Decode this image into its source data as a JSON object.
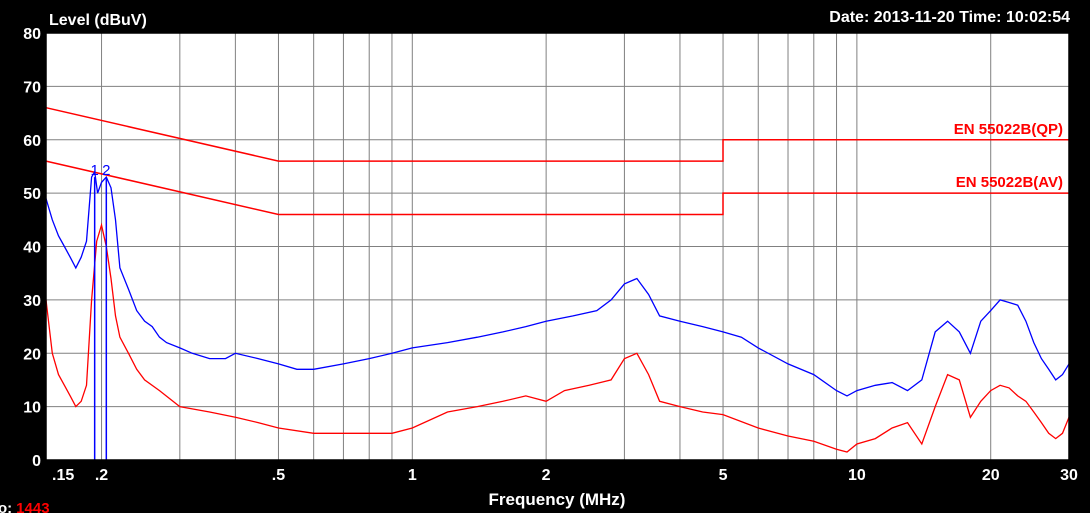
{
  "chart_data": {
    "type": "line",
    "title": "",
    "ylabel": "Level (dBuV)",
    "xlabel": "Frequency (MHz)",
    "timestamp": "Date: 2013-11-20  Time: 10:02:54",
    "footer": {
      "prefix": "o:",
      "value": "1443"
    },
    "x_scale": "log",
    "xlim": [
      0.15,
      30
    ],
    "ylim": [
      0,
      80
    ],
    "grid": true,
    "y_ticks": [
      "0",
      "10",
      "20",
      "30",
      "40",
      "50",
      "60",
      "70",
      "80"
    ],
    "x_ticks": [
      {
        "value": 0.15,
        "label": ".15"
      },
      {
        "value": 0.2,
        "label": ".2"
      },
      {
        "value": 0.5,
        "label": ".5"
      },
      {
        "value": 1,
        "label": "1"
      },
      {
        "value": 2,
        "label": "2"
      },
      {
        "value": 5,
        "label": "5"
      },
      {
        "value": 10,
        "label": "10"
      },
      {
        "value": 20,
        "label": "20"
      },
      {
        "value": 30,
        "label": "30"
      }
    ],
    "limit_lines": [
      {
        "name": "EN 55022B(QP)",
        "color": "#ff0000",
        "points": [
          [
            0.15,
            66
          ],
          [
            0.5,
            56
          ],
          [
            5,
            56
          ],
          [
            5,
            60
          ],
          [
            30,
            60
          ]
        ]
      },
      {
        "name": "EN 55022B(AV)",
        "color": "#ff0000",
        "points": [
          [
            0.15,
            56
          ],
          [
            0.5,
            46
          ],
          [
            5,
            46
          ],
          [
            5,
            50
          ],
          [
            30,
            50
          ]
        ]
      }
    ],
    "markers": [
      {
        "label": "1",
        "x": 0.193
      },
      {
        "label": "2",
        "x": 0.205
      }
    ],
    "series": [
      {
        "color": "#0000ff",
        "points": [
          [
            0.15,
            49
          ],
          [
            0.155,
            45
          ],
          [
            0.16,
            42
          ],
          [
            0.165,
            40
          ],
          [
            0.17,
            38
          ],
          [
            0.175,
            36
          ],
          [
            0.18,
            38
          ],
          [
            0.185,
            41
          ],
          [
            0.19,
            53
          ],
          [
            0.193,
            54
          ],
          [
            0.196,
            50
          ],
          [
            0.2,
            52
          ],
          [
            0.205,
            53
          ],
          [
            0.21,
            51
          ],
          [
            0.215,
            45
          ],
          [
            0.22,
            36
          ],
          [
            0.23,
            32
          ],
          [
            0.24,
            28
          ],
          [
            0.25,
            26
          ],
          [
            0.26,
            25
          ],
          [
            0.27,
            23
          ],
          [
            0.28,
            22
          ],
          [
            0.3,
            21
          ],
          [
            0.32,
            20
          ],
          [
            0.35,
            19
          ],
          [
            0.38,
            19
          ],
          [
            0.4,
            20
          ],
          [
            0.45,
            19
          ],
          [
            0.5,
            18
          ],
          [
            0.55,
            17
          ],
          [
            0.6,
            17
          ],
          [
            0.7,
            18
          ],
          [
            0.8,
            19
          ],
          [
            0.9,
            20
          ],
          [
            1,
            21
          ],
          [
            1.2,
            22
          ],
          [
            1.4,
            23
          ],
          [
            1.6,
            24
          ],
          [
            1.8,
            25
          ],
          [
            2,
            26
          ],
          [
            2.3,
            27
          ],
          [
            2.6,
            28
          ],
          [
            2.8,
            30
          ],
          [
            3,
            33
          ],
          [
            3.2,
            34
          ],
          [
            3.4,
            31
          ],
          [
            3.6,
            27
          ],
          [
            4,
            26
          ],
          [
            4.5,
            25
          ],
          [
            5,
            24
          ],
          [
            5.5,
            23
          ],
          [
            6,
            21
          ],
          [
            7,
            18
          ],
          [
            8,
            16
          ],
          [
            9,
            13
          ],
          [
            9.5,
            12
          ],
          [
            10,
            13
          ],
          [
            11,
            14
          ],
          [
            12,
            14.5
          ],
          [
            13,
            13
          ],
          [
            14,
            15
          ],
          [
            15,
            24
          ],
          [
            16,
            26
          ],
          [
            17,
            24
          ],
          [
            18,
            20
          ],
          [
            19,
            26
          ],
          [
            20,
            28
          ],
          [
            21,
            30
          ],
          [
            22,
            29.5
          ],
          [
            23,
            29
          ],
          [
            24,
            26
          ],
          [
            25,
            22
          ],
          [
            26,
            19
          ],
          [
            27,
            17
          ],
          [
            28,
            15
          ],
          [
            29,
            16
          ],
          [
            30,
            18
          ]
        ]
      },
      {
        "color": "#ff0000",
        "points": [
          [
            0.15,
            30
          ],
          [
            0.155,
            20
          ],
          [
            0.16,
            16
          ],
          [
            0.165,
            14
          ],
          [
            0.17,
            12
          ],
          [
            0.175,
            10
          ],
          [
            0.18,
            11
          ],
          [
            0.185,
            14
          ],
          [
            0.19,
            30
          ],
          [
            0.195,
            41
          ],
          [
            0.2,
            44
          ],
          [
            0.205,
            40
          ],
          [
            0.21,
            34
          ],
          [
            0.215,
            27
          ],
          [
            0.22,
            23
          ],
          [
            0.23,
            20
          ],
          [
            0.24,
            17
          ],
          [
            0.25,
            15
          ],
          [
            0.27,
            13
          ],
          [
            0.3,
            10
          ],
          [
            0.35,
            9
          ],
          [
            0.4,
            8
          ],
          [
            0.45,
            7
          ],
          [
            0.5,
            6
          ],
          [
            0.6,
            5
          ],
          [
            0.7,
            5
          ],
          [
            0.8,
            5
          ],
          [
            0.9,
            5
          ],
          [
            1,
            6
          ],
          [
            1.2,
            9
          ],
          [
            1.4,
            10
          ],
          [
            1.6,
            11
          ],
          [
            1.8,
            12
          ],
          [
            2,
            11
          ],
          [
            2.2,
            13
          ],
          [
            2.5,
            14
          ],
          [
            2.8,
            15
          ],
          [
            3,
            19
          ],
          [
            3.2,
            20
          ],
          [
            3.4,
            16
          ],
          [
            3.6,
            11
          ],
          [
            4,
            10
          ],
          [
            4.5,
            9
          ],
          [
            5,
            8.5
          ],
          [
            6,
            6
          ],
          [
            7,
            4.5
          ],
          [
            8,
            3.5
          ],
          [
            9,
            2
          ],
          [
            9.5,
            1.5
          ],
          [
            10,
            3
          ],
          [
            11,
            4
          ],
          [
            12,
            6
          ],
          [
            13,
            7
          ],
          [
            14,
            3
          ],
          [
            15,
            10
          ],
          [
            16,
            16
          ],
          [
            17,
            15
          ],
          [
            18,
            8
          ],
          [
            19,
            11
          ],
          [
            20,
            13
          ],
          [
            21,
            14
          ],
          [
            22,
            13.5
          ],
          [
            23,
            12
          ],
          [
            24,
            11
          ],
          [
            25,
            9
          ],
          [
            26,
            7
          ],
          [
            27,
            5
          ],
          [
            28,
            4
          ],
          [
            29,
            5
          ],
          [
            30,
            8
          ]
        ]
      }
    ]
  }
}
